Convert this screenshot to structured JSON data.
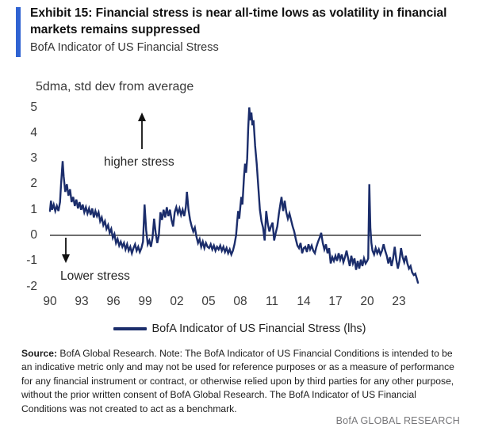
{
  "header": {
    "exhibit_title": "Exhibit 15: Financial stress is near all-time lows as volatility in financial markets remains suppressed",
    "subtitle": "BofA Indicator of US Financial Stress"
  },
  "colors": {
    "accent_bar": "#2f63d2",
    "line": "#1b2d6b",
    "zero_line": "#3f3f3f",
    "brand_text": "#77777a"
  },
  "footer": {
    "source_label": "Source:",
    "note": " BofA Global Research. Note: The BofA Indicator of US Financial Conditions is intended to be an indicative metric only and may not be used for reference purposes or as a measure of performance for any financial instrument or contract, or otherwise relied upon by third parties for any other purpose, without the prior written consent of BofA Global Research. The BofA Indicator of US Financial Conditions was not created to act as a benchmark.",
    "brand": "BofA GLOBAL RESEARCH"
  },
  "chart_data": {
    "type": "line",
    "title": "BofA Indicator of US Financial Stress",
    "ylabel": "5dma, std dev from average",
    "xlabel": "",
    "ylim": [
      -2,
      5
    ],
    "xlim": [
      1990,
      2025
    ],
    "grid": false,
    "zero_line": true,
    "y_ticks": [
      5,
      4,
      3,
      2,
      1,
      0,
      -1,
      -2
    ],
    "x_tick_years": [
      1990,
      1993,
      1996,
      1999,
      2002,
      2005,
      2008,
      2011,
      2014,
      2017,
      2020,
      2023
    ],
    "x_tick_labels": [
      "90",
      "93",
      "96",
      "99",
      "02",
      "05",
      "08",
      "11",
      "14",
      "17",
      "20",
      "23"
    ],
    "legend": {
      "position": "bottom",
      "entries": [
        "BofA Indicator of US Financial Stress (lhs)"
      ]
    },
    "annotations": [
      {
        "text": "higher stress",
        "arrow": "up"
      },
      {
        "text": "Lower stress",
        "arrow": "down"
      }
    ],
    "series": [
      {
        "name": "BofA Indicator of US Financial Stress (lhs)",
        "color": "#1b2d6b",
        "points": [
          [
            1990.0,
            0.95
          ],
          [
            1990.1,
            1.35
          ],
          [
            1990.2,
            1.0
          ],
          [
            1990.35,
            1.2
          ],
          [
            1990.5,
            0.95
          ],
          [
            1990.65,
            1.15
          ],
          [
            1990.8,
            0.95
          ],
          [
            1990.95,
            1.3
          ],
          [
            1991.05,
            2.0
          ],
          [
            1991.2,
            2.9
          ],
          [
            1991.3,
            2.3
          ],
          [
            1991.45,
            1.7
          ],
          [
            1991.6,
            2.0
          ],
          [
            1991.75,
            1.55
          ],
          [
            1991.9,
            1.8
          ],
          [
            1992.05,
            1.3
          ],
          [
            1992.2,
            1.5
          ],
          [
            1992.35,
            1.15
          ],
          [
            1992.5,
            1.4
          ],
          [
            1992.65,
            1.05
          ],
          [
            1992.8,
            1.3
          ],
          [
            1992.95,
            1.0
          ],
          [
            1993.1,
            1.2
          ],
          [
            1993.25,
            0.9
          ],
          [
            1993.4,
            1.1
          ],
          [
            1993.55,
            0.85
          ],
          [
            1993.7,
            1.05
          ],
          [
            1993.85,
            0.8
          ],
          [
            1994.0,
            1.05
          ],
          [
            1994.15,
            0.7
          ],
          [
            1994.3,
            0.95
          ],
          [
            1994.45,
            0.75
          ],
          [
            1994.6,
            0.9
          ],
          [
            1994.75,
            0.55
          ],
          [
            1994.9,
            0.7
          ],
          [
            1995.05,
            0.4
          ],
          [
            1995.2,
            0.55
          ],
          [
            1995.35,
            0.25
          ],
          [
            1995.5,
            0.4
          ],
          [
            1995.65,
            0.1
          ],
          [
            1995.8,
            0.25
          ],
          [
            1995.95,
            -0.1
          ],
          [
            1996.1,
            0.05
          ],
          [
            1996.25,
            -0.3
          ],
          [
            1996.4,
            -0.15
          ],
          [
            1996.55,
            -0.4
          ],
          [
            1996.7,
            -0.25
          ],
          [
            1996.85,
            -0.45
          ],
          [
            1997.0,
            -0.3
          ],
          [
            1997.15,
            -0.55
          ],
          [
            1997.3,
            -0.35
          ],
          [
            1997.45,
            -0.6
          ],
          [
            1997.6,
            -0.45
          ],
          [
            1997.75,
            -0.7
          ],
          [
            1997.9,
            -0.5
          ],
          [
            1998.05,
            -0.35
          ],
          [
            1998.2,
            -0.6
          ],
          [
            1998.35,
            -0.45
          ],
          [
            1998.5,
            -0.65
          ],
          [
            1998.65,
            -0.5
          ],
          [
            1998.8,
            -0.25
          ],
          [
            1998.95,
            1.2
          ],
          [
            1999.1,
            0.2
          ],
          [
            1999.25,
            -0.35
          ],
          [
            1999.4,
            -0.2
          ],
          [
            1999.55,
            -0.45
          ],
          [
            1999.7,
            -0.1
          ],
          [
            1999.85,
            0.65
          ],
          [
            2000.0,
            0.1
          ],
          [
            2000.15,
            -0.3
          ],
          [
            2000.3,
            0.0
          ],
          [
            2000.45,
            0.9
          ],
          [
            2000.6,
            0.6
          ],
          [
            2000.75,
            1.0
          ],
          [
            2000.9,
            0.7
          ],
          [
            2001.05,
            1.1
          ],
          [
            2001.2,
            0.75
          ],
          [
            2001.35,
            1.0
          ],
          [
            2001.5,
            0.6
          ],
          [
            2001.65,
            0.35
          ],
          [
            2001.8,
            0.9
          ],
          [
            2001.95,
            1.1
          ],
          [
            2002.1,
            0.85
          ],
          [
            2002.25,
            1.05
          ],
          [
            2002.4,
            0.8
          ],
          [
            2002.55,
            1.0
          ],
          [
            2002.7,
            0.75
          ],
          [
            2002.85,
            1.1
          ],
          [
            2002.95,
            1.7
          ],
          [
            2003.1,
            1.0
          ],
          [
            2003.25,
            0.6
          ],
          [
            2003.4,
            0.35
          ],
          [
            2003.55,
            0.15
          ],
          [
            2003.7,
            0.3
          ],
          [
            2003.85,
            -0.05
          ],
          [
            2004.0,
            -0.3
          ],
          [
            2004.15,
            -0.15
          ],
          [
            2004.3,
            -0.45
          ],
          [
            2004.45,
            -0.25
          ],
          [
            2004.6,
            -0.5
          ],
          [
            2004.75,
            -0.3
          ],
          [
            2004.9,
            -0.45
          ],
          [
            2005.05,
            -0.5
          ],
          [
            2005.2,
            -0.35
          ],
          [
            2005.35,
            -0.55
          ],
          [
            2005.5,
            -0.4
          ],
          [
            2005.65,
            -0.6
          ],
          [
            2005.8,
            -0.45
          ],
          [
            2005.95,
            -0.55
          ],
          [
            2006.1,
            -0.4
          ],
          [
            2006.25,
            -0.6
          ],
          [
            2006.4,
            -0.45
          ],
          [
            2006.55,
            -0.65
          ],
          [
            2006.7,
            -0.5
          ],
          [
            2006.85,
            -0.7
          ],
          [
            2007.0,
            -0.55
          ],
          [
            2007.15,
            -0.75
          ],
          [
            2007.3,
            -0.6
          ],
          [
            2007.45,
            -0.35
          ],
          [
            2007.6,
            0.0
          ],
          [
            2007.7,
            0.5
          ],
          [
            2007.8,
            0.95
          ],
          [
            2007.9,
            0.65
          ],
          [
            2008.0,
            1.1
          ],
          [
            2008.1,
            1.5
          ],
          [
            2008.2,
            1.2
          ],
          [
            2008.35,
            2.3
          ],
          [
            2008.45,
            2.8
          ],
          [
            2008.55,
            2.45
          ],
          [
            2008.65,
            3.0
          ],
          [
            2008.75,
            4.2
          ],
          [
            2008.85,
            5.0
          ],
          [
            2008.95,
            4.5
          ],
          [
            2009.05,
            4.8
          ],
          [
            2009.15,
            4.3
          ],
          [
            2009.25,
            4.5
          ],
          [
            2009.4,
            3.5
          ],
          [
            2009.55,
            2.8
          ],
          [
            2009.7,
            1.9
          ],
          [
            2009.85,
            1.0
          ],
          [
            2010.0,
            0.55
          ],
          [
            2010.15,
            0.3
          ],
          [
            2010.3,
            -0.2
          ],
          [
            2010.45,
            0.95
          ],
          [
            2010.6,
            0.45
          ],
          [
            2010.75,
            0.15
          ],
          [
            2010.9,
            0.35
          ],
          [
            2011.05,
            0.5
          ],
          [
            2011.2,
            -0.2
          ],
          [
            2011.35,
            0.1
          ],
          [
            2011.5,
            0.35
          ],
          [
            2011.65,
            0.85
          ],
          [
            2011.8,
            1.25
          ],
          [
            2011.9,
            1.5
          ],
          [
            2012.05,
            0.95
          ],
          [
            2012.2,
            1.35
          ],
          [
            2012.35,
            0.9
          ],
          [
            2012.5,
            0.65
          ],
          [
            2012.65,
            0.85
          ],
          [
            2012.8,
            0.6
          ],
          [
            2012.95,
            0.35
          ],
          [
            2013.1,
            0.15
          ],
          [
            2013.25,
            -0.15
          ],
          [
            2013.4,
            -0.4
          ],
          [
            2013.55,
            -0.5
          ],
          [
            2013.7,
            -0.3
          ],
          [
            2013.85,
            -0.7
          ],
          [
            2014.0,
            -0.5
          ],
          [
            2014.15,
            -0.45
          ],
          [
            2014.3,
            -0.65
          ],
          [
            2014.45,
            -0.35
          ],
          [
            2014.6,
            -0.55
          ],
          [
            2014.75,
            -0.4
          ],
          [
            2014.9,
            -0.6
          ],
          [
            2015.05,
            -0.7
          ],
          [
            2015.2,
            -0.45
          ],
          [
            2015.35,
            -0.25
          ],
          [
            2015.5,
            -0.1
          ],
          [
            2015.65,
            0.1
          ],
          [
            2015.8,
            -0.3
          ],
          [
            2015.95,
            -0.55
          ],
          [
            2016.1,
            -0.35
          ],
          [
            2016.25,
            -0.7
          ],
          [
            2016.4,
            -0.5
          ],
          [
            2016.55,
            -1.1
          ],
          [
            2016.7,
            -0.85
          ],
          [
            2016.85,
            -1.0
          ],
          [
            2017.0,
            -0.8
          ],
          [
            2017.15,
            -1.0
          ],
          [
            2017.3,
            -0.7
          ],
          [
            2017.45,
            -0.95
          ],
          [
            2017.6,
            -0.75
          ],
          [
            2017.75,
            -1.05
          ],
          [
            2017.9,
            -0.85
          ],
          [
            2018.05,
            -0.6
          ],
          [
            2018.2,
            -0.9
          ],
          [
            2018.35,
            -1.2
          ],
          [
            2018.5,
            -0.8
          ],
          [
            2018.65,
            -1.1
          ],
          [
            2018.8,
            -0.9
          ],
          [
            2018.95,
            -1.35
          ],
          [
            2019.1,
            -1.0
          ],
          [
            2019.25,
            -1.3
          ],
          [
            2019.4,
            -0.95
          ],
          [
            2019.55,
            -1.2
          ],
          [
            2019.7,
            -0.9
          ],
          [
            2019.85,
            -1.1
          ],
          [
            2020.0,
            -1.0
          ],
          [
            2020.1,
            -0.9
          ],
          [
            2020.2,
            2.0
          ],
          [
            2020.3,
            0.3
          ],
          [
            2020.4,
            -0.3
          ],
          [
            2020.5,
            -0.6
          ],
          [
            2020.65,
            -0.75
          ],
          [
            2020.8,
            -0.5
          ],
          [
            2020.95,
            -0.7
          ],
          [
            2021.1,
            -0.55
          ],
          [
            2021.25,
            -0.75
          ],
          [
            2021.4,
            -0.6
          ],
          [
            2021.55,
            -0.35
          ],
          [
            2021.7,
            -0.6
          ],
          [
            2021.85,
            -0.8
          ],
          [
            2022.0,
            -1.1
          ],
          [
            2022.15,
            -0.85
          ],
          [
            2022.3,
            -1.2
          ],
          [
            2022.45,
            -0.9
          ],
          [
            2022.6,
            -0.45
          ],
          [
            2022.75,
            -0.95
          ],
          [
            2022.9,
            -1.3
          ],
          [
            2023.05,
            -1.0
          ],
          [
            2023.2,
            -0.5
          ],
          [
            2023.35,
            -0.85
          ],
          [
            2023.5,
            -1.05
          ],
          [
            2023.65,
            -0.8
          ],
          [
            2023.8,
            -1.1
          ],
          [
            2023.95,
            -1.3
          ],
          [
            2024.1,
            -1.2
          ],
          [
            2024.25,
            -1.45
          ],
          [
            2024.4,
            -1.55
          ],
          [
            2024.55,
            -1.5
          ],
          [
            2024.7,
            -1.7
          ],
          [
            2024.8,
            -1.85
          ]
        ]
      }
    ]
  }
}
